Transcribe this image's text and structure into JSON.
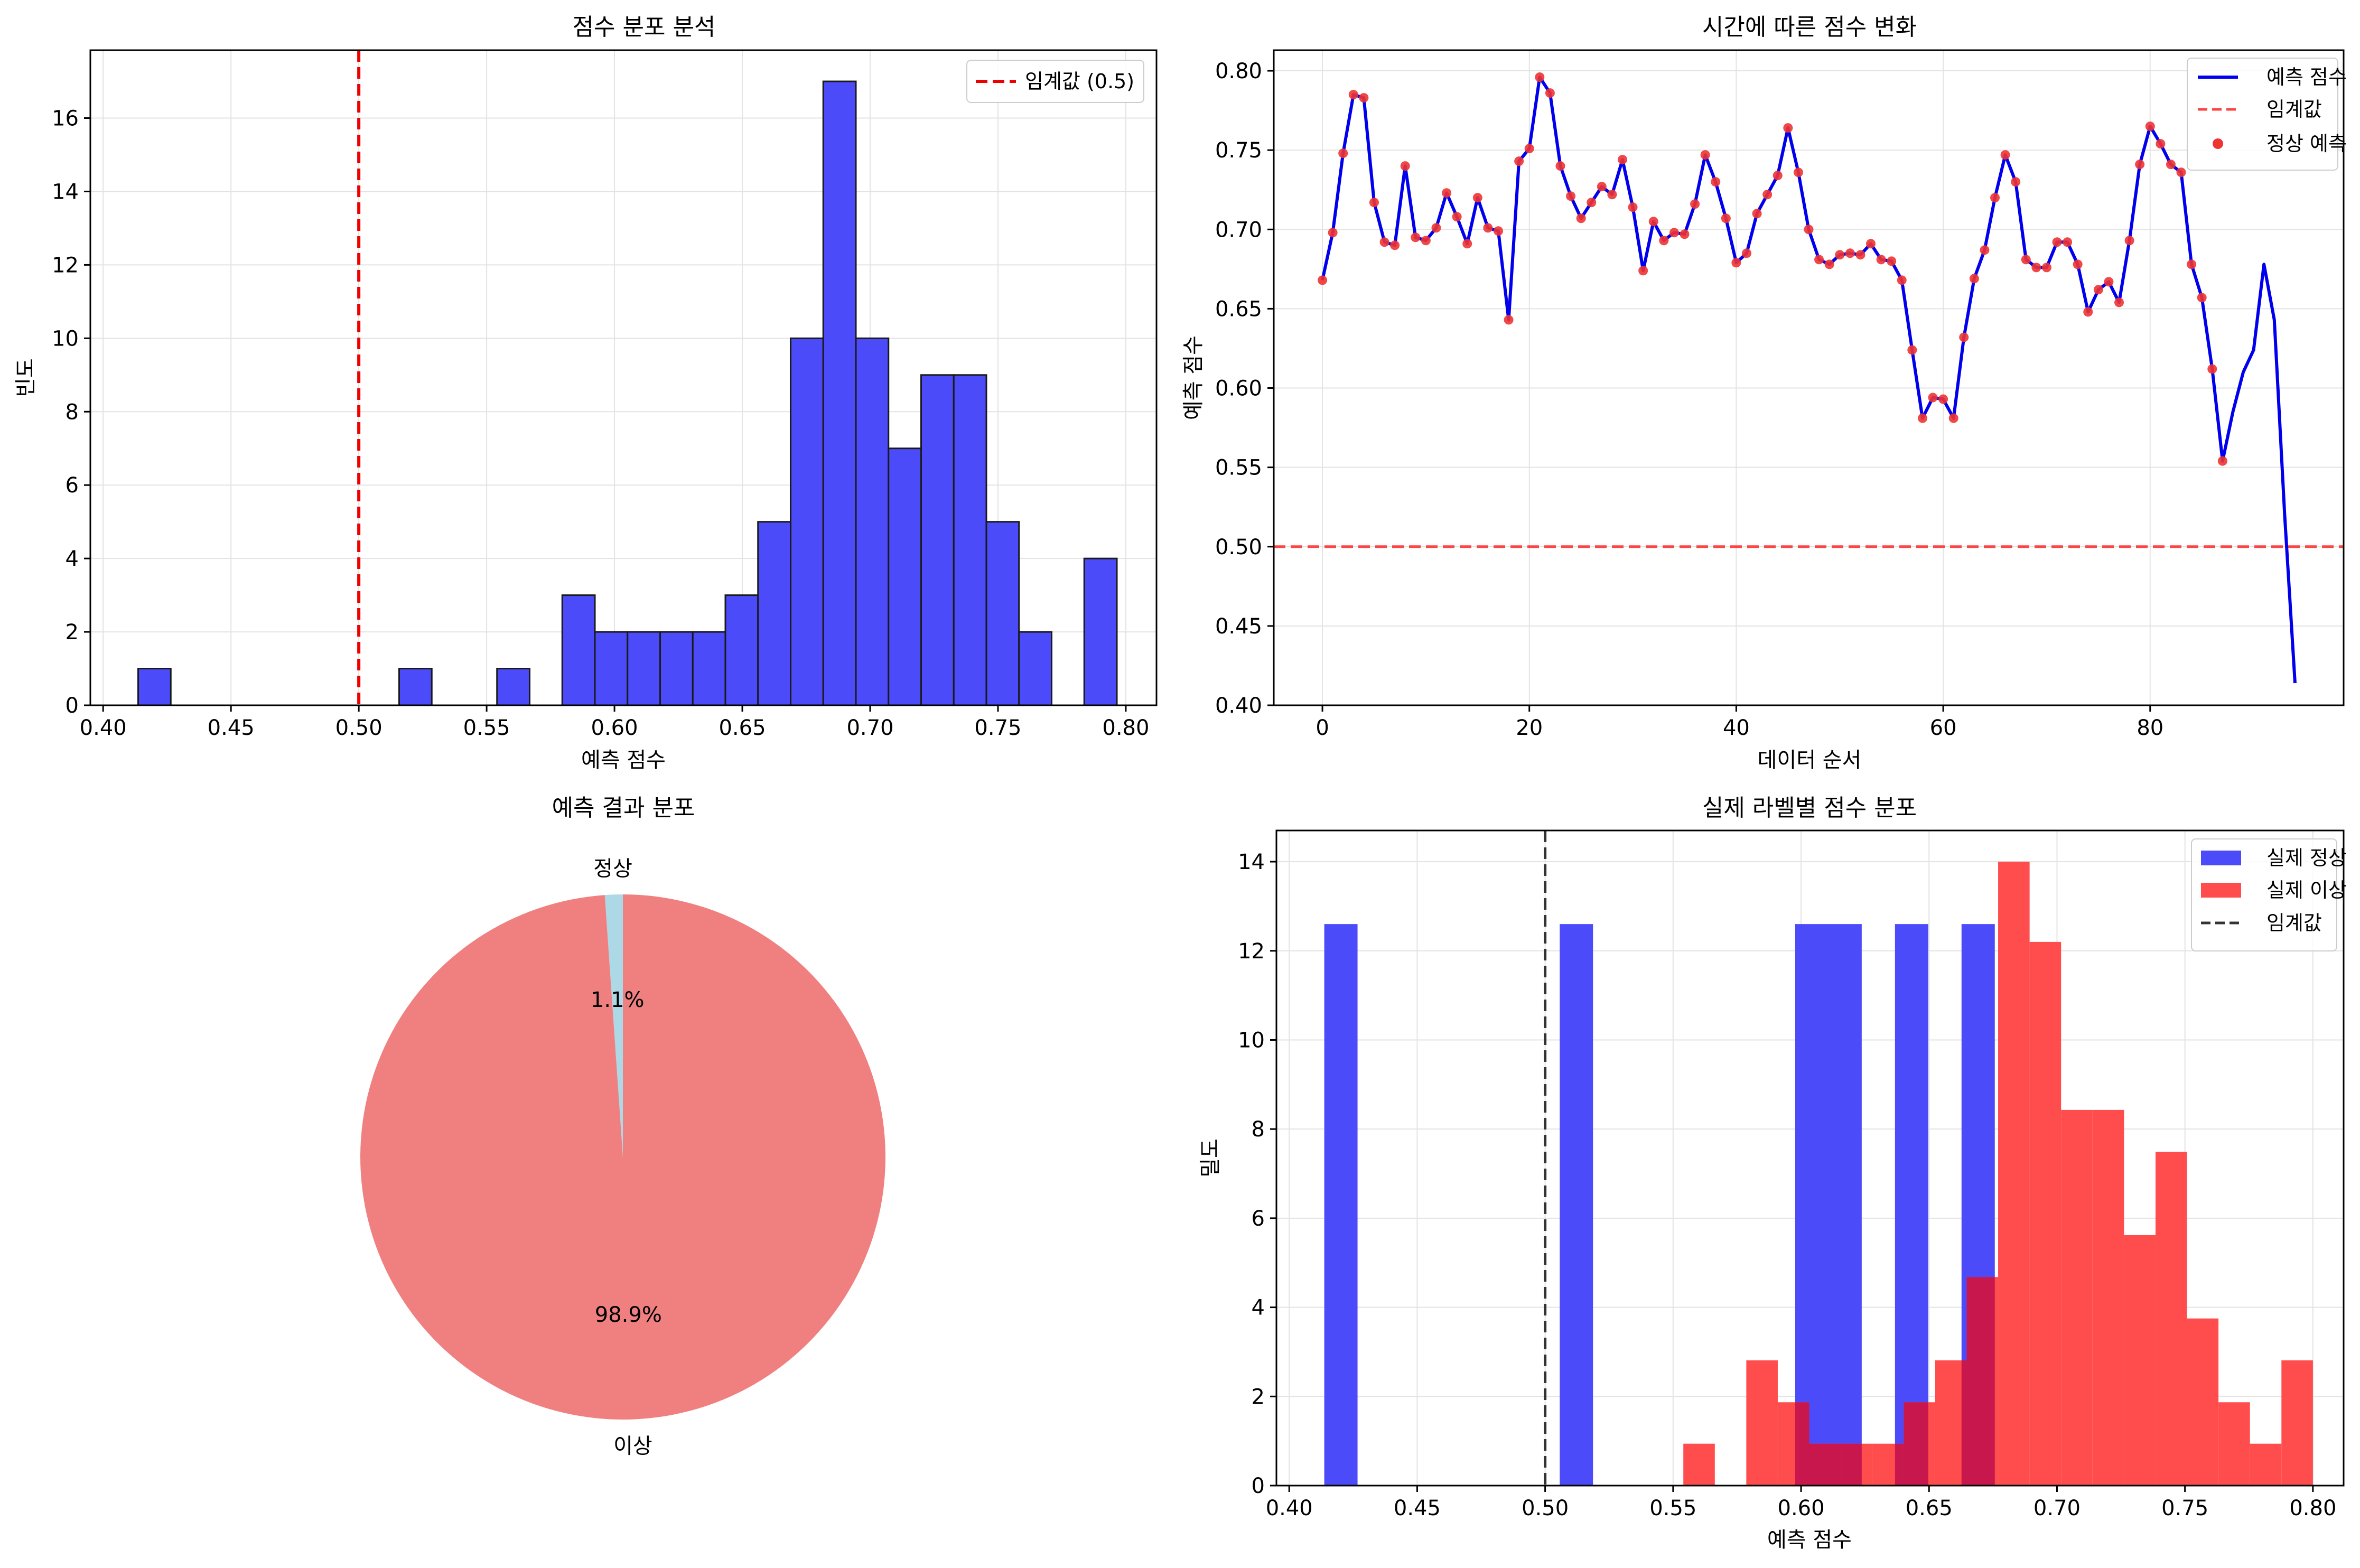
{
  "chart_data": [
    {
      "id": "hist",
      "type": "bar",
      "title": "점수 분포 분석",
      "xlabel": "예측 점수",
      "ylabel": "빈도",
      "xlim": [
        0.395,
        0.812
      ],
      "ylim": [
        0,
        17.85
      ],
      "xticks": [
        "0.40",
        "0.45",
        "0.50",
        "0.55",
        "0.60",
        "0.65",
        "0.70",
        "0.75",
        "0.80"
      ],
      "yticks": [
        "0",
        "2",
        "4",
        "6",
        "8",
        "10",
        "12",
        "14",
        "16"
      ],
      "bin_start": 0.4137,
      "bin_width": 0.01276,
      "counts": [
        1,
        0,
        0,
        0,
        0,
        0,
        0,
        0,
        1,
        0,
        0,
        1,
        0,
        3,
        2,
        2,
        2,
        2,
        3,
        5,
        10,
        17,
        10,
        7,
        9,
        9,
        5,
        2,
        0,
        4
      ],
      "threshold": 0.5,
      "legend": [
        "임계값 (0.5)"
      ],
      "colors": {
        "bar": "#4b4bf9",
        "edge": "#1a1a1a",
        "threshold": "#ee0000"
      }
    },
    {
      "id": "line",
      "type": "line",
      "title": "시간에 따른 점수 변화",
      "xlabel": "데이터 순서",
      "ylabel": "예측 점수",
      "xlim": [
        -4.7,
        98.7
      ],
      "ylim": [
        0.4,
        0.813
      ],
      "xticks": [
        "0",
        "20",
        "40",
        "60",
        "80"
      ],
      "yticks": [
        "0.40",
        "0.45",
        "0.50",
        "0.55",
        "0.60",
        "0.65",
        "0.70",
        "0.75",
        "0.80"
      ],
      "values": [
        0.668,
        0.698,
        0.748,
        0.785,
        0.783,
        0.717,
        0.692,
        0.69,
        0.74,
        0.695,
        0.693,
        0.701,
        0.723,
        0.708,
        0.691,
        0.72,
        0.701,
        0.699,
        0.643,
        0.743,
        0.751,
        0.796,
        0.786,
        0.74,
        0.721,
        0.707,
        0.717,
        0.727,
        0.722,
        0.744,
        0.714,
        0.674,
        0.705,
        0.693,
        0.698,
        0.697,
        0.716,
        0.747,
        0.73,
        0.707,
        0.679,
        0.685,
        0.71,
        0.722,
        0.734,
        0.764,
        0.736,
        0.7,
        0.681,
        0.678,
        0.684,
        0.685,
        0.684,
        0.691,
        0.681,
        0.68,
        0.668,
        0.624,
        0.581,
        0.594,
        0.593,
        0.581,
        0.632,
        0.669,
        0.687,
        0.72,
        0.747,
        0.73,
        0.681,
        0.676,
        0.676,
        0.692,
        0.692,
        0.678,
        0.648,
        0.662,
        0.667,
        0.654,
        0.693,
        0.741,
        0.765,
        0.754,
        0.741,
        0.736,
        0.678,
        0.657,
        0.612,
        0.554,
        0.585,
        0.61,
        0.624,
        0.678,
        0.643,
        0.52,
        0.414
      ],
      "marker_count": 88,
      "threshold": 0.5,
      "legend": [
        "예측 점수",
        "임계값",
        "정상 예측"
      ],
      "colors": {
        "line": "#0000ee",
        "marker": "#ee3333",
        "threshold": "#ff4444"
      }
    },
    {
      "id": "pie",
      "type": "pie",
      "title": "예측 결과 분포",
      "slices": [
        {
          "label": "정상",
          "value": 1.1,
          "pct_label": "1.1%",
          "color": "#add8e6"
        },
        {
          "label": "이상",
          "value": 98.9,
          "pct_label": "98.9%",
          "color": "#f08080"
        }
      ]
    },
    {
      "id": "hist2",
      "type": "bar",
      "title": "실제 라벨별 점수 분포",
      "xlabel": "예측 점수",
      "ylabel": "밀도",
      "xlim": [
        0.395,
        0.812
      ],
      "ylim": [
        0,
        14.7
      ],
      "xticks": [
        "0.40",
        "0.45",
        "0.50",
        "0.55",
        "0.60",
        "0.65",
        "0.70",
        "0.75",
        "0.80"
      ],
      "yticks": [
        "0",
        "2",
        "4",
        "6",
        "8",
        "10",
        "12",
        "14"
      ],
      "series": [
        {
          "name": "실제 정상",
          "color": "#4b4bf9",
          "bins": [
            {
              "x0": 0.4137,
              "x1": 0.4267,
              "v": 12.6
            },
            {
              "x0": 0.5057,
              "x1": 0.5187,
              "v": 12.6
            },
            {
              "x0": 0.5977,
              "x1": 0.6237,
              "v": 12.6
            },
            {
              "x0": 0.6367,
              "x1": 0.6497,
              "v": 12.6
            },
            {
              "x0": 0.6627,
              "x1": 0.6757,
              "v": 12.6
            }
          ]
        },
        {
          "name": "실제 이상",
          "color": "#ff4d4d",
          "bins": [
            {
              "x0": 0.554,
              "x1": 0.5663,
              "v": 0.94
            },
            {
              "x0": 0.5786,
              "x1": 0.5909,
              "v": 2.81
            },
            {
              "x0": 0.5909,
              "x1": 0.6032,
              "v": 1.87
            },
            {
              "x0": 0.6032,
              "x1": 0.6155,
              "v": 0.94
            },
            {
              "x0": 0.6155,
              "x1": 0.6278,
              "v": 0.94
            },
            {
              "x0": 0.6278,
              "x1": 0.6401,
              "v": 0.94
            },
            {
              "x0": 0.6401,
              "x1": 0.6524,
              "v": 1.87
            },
            {
              "x0": 0.6524,
              "x1": 0.6647,
              "v": 2.81
            },
            {
              "x0": 0.6647,
              "x1": 0.677,
              "v": 4.68
            },
            {
              "x0": 0.677,
              "x1": 0.6893,
              "v": 14.0
            },
            {
              "x0": 0.6893,
              "x1": 0.7016,
              "v": 12.2
            },
            {
              "x0": 0.7016,
              "x1": 0.7139,
              "v": 8.43
            },
            {
              "x0": 0.7139,
              "x1": 0.7262,
              "v": 8.43
            },
            {
              "x0": 0.7262,
              "x1": 0.7385,
              "v": 5.62
            },
            {
              "x0": 0.7385,
              "x1": 0.7508,
              "v": 7.49
            },
            {
              "x0": 0.7508,
              "x1": 0.7631,
              "v": 3.75
            },
            {
              "x0": 0.7631,
              "x1": 0.7754,
              "v": 1.87
            },
            {
              "x0": 0.7754,
              "x1": 0.7877,
              "v": 0.94
            },
            {
              "x0": 0.7877,
              "x1": 0.8,
              "v": 2.81
            }
          ]
        }
      ],
      "threshold": 0.5,
      "legend": [
        "실제 정상",
        "실제 이상",
        "임계값"
      ],
      "colors": {
        "threshold": "#333333",
        "overlap": "#c8174d"
      }
    }
  ]
}
